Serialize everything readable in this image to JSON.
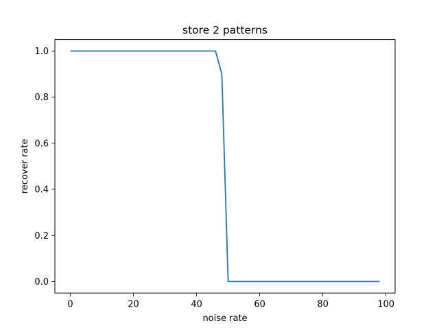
{
  "chart_data": {
    "type": "line",
    "title": "store 2 patterns",
    "xlabel": "noise rate",
    "ylabel": "recover rate",
    "xlim": [
      -4.9,
      102.9
    ],
    "ylim": [
      -0.05,
      1.05
    ],
    "xticks": [
      0,
      20,
      40,
      60,
      80,
      100
    ],
    "yticks": [
      0.0,
      0.2,
      0.4,
      0.6,
      0.8,
      1.0
    ],
    "xtick_labels": [
      "0",
      "20",
      "40",
      "60",
      "80",
      "100"
    ],
    "ytick_labels": [
      "0.0",
      "0.2",
      "0.4",
      "0.6",
      "0.8",
      "1.0"
    ],
    "grid": false,
    "series": [
      {
        "color": "#1f77b4",
        "x": [
          0,
          2,
          4,
          6,
          8,
          10,
          12,
          14,
          16,
          18,
          20,
          22,
          24,
          26,
          28,
          30,
          32,
          34,
          36,
          38,
          40,
          42,
          44,
          46,
          48,
          50,
          52,
          54,
          56,
          58,
          60,
          62,
          64,
          66,
          68,
          70,
          72,
          74,
          76,
          78,
          80,
          82,
          84,
          86,
          88,
          90,
          92,
          94,
          96,
          98
        ],
        "y": [
          1,
          1,
          1,
          1,
          1,
          1,
          1,
          1,
          1,
          1,
          1,
          1,
          1,
          1,
          1,
          1,
          1,
          1,
          1,
          1,
          1,
          1,
          1,
          1,
          0.9,
          0,
          0,
          0,
          0,
          0,
          0,
          0,
          0,
          0,
          0,
          0,
          0,
          0,
          0,
          0,
          0,
          0,
          0,
          0,
          0,
          0,
          0,
          0,
          0,
          0
        ]
      }
    ]
  }
}
